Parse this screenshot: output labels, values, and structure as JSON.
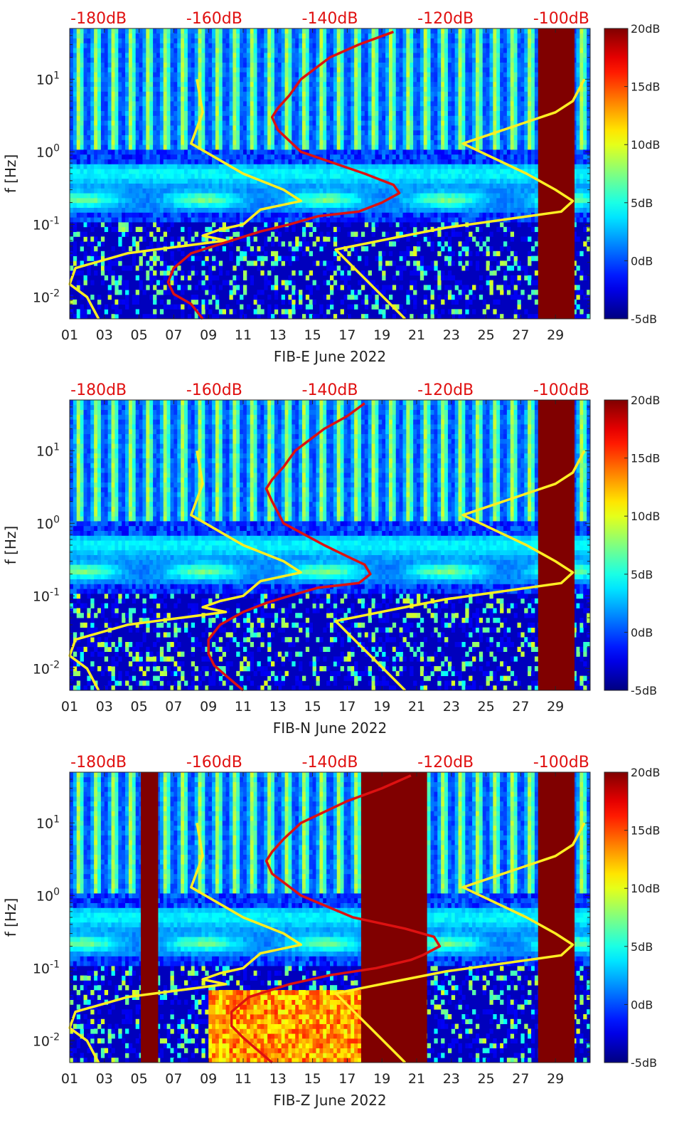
{
  "colors": {
    "noise_model_curve": "#ffee22",
    "station_curve": "#dd1111",
    "top_axis_text": "#e01010",
    "saturated_block": "#800000",
    "axis_text": "#222222"
  },
  "colorbar": {
    "colormap": "jet",
    "range_db": [
      -5,
      20
    ],
    "tick_labels": [
      "20dB",
      "15dB",
      "10dB",
      "5dB",
      "0dB",
      "-5dB"
    ]
  },
  "chart_data": [
    {
      "type": "heatmap",
      "title": "",
      "xlabel": "FIB-E June 2022",
      "ylabel": "f [Hz]",
      "x_tick_labels": [
        "01",
        "03",
        "05",
        "07",
        "09",
        "11",
        "13",
        "15",
        "17",
        "19",
        "21",
        "23",
        "25",
        "27",
        "29"
      ],
      "x_range_days": [
        1,
        31
      ],
      "y_scale": "log",
      "y_range_hz": [
        0.005,
        50
      ],
      "y_tick_labels": [
        "10^-2",
        "10^-1",
        "10^0",
        "10^1"
      ],
      "top_axis_labels": [
        "-180dB",
        "-160dB",
        "-140dB",
        "-120dB",
        "-100dB"
      ],
      "top_axis_range_db": [
        -185,
        -95
      ],
      "colorbar_range_db": [
        -5,
        20
      ],
      "saturated_blocks_days": [
        [
          28,
          30.1
        ]
      ],
      "series": [
        {
          "name": "noise-model-low",
          "color": "yellow",
          "db_by_freq": [
            [
              0.005,
              -180
            ],
            [
              0.01,
              -182
            ],
            [
              0.015,
              -185
            ],
            [
              0.025,
              -184
            ],
            [
              0.04,
              -175
            ],
            [
              0.06,
              -158
            ],
            [
              0.07,
              -162
            ],
            [
              0.085,
              -159
            ],
            [
              0.1,
              -155
            ],
            [
              0.16,
              -152
            ],
            [
              0.21,
              -145
            ],
            [
              0.3,
              -148
            ],
            [
              0.5,
              -155
            ],
            [
              1.3,
              -164
            ],
            [
              3.5,
              -162
            ],
            [
              10,
              -163
            ]
          ]
        },
        {
          "name": "noise-model-high",
          "color": "yellow",
          "db_by_freq": [
            [
              0.005,
              -127
            ],
            [
              0.015,
              -133
            ],
            [
              0.045,
              -139
            ],
            [
              0.065,
              -129
            ],
            [
              0.09,
              -120
            ],
            [
              0.15,
              -100
            ],
            [
              0.21,
              -98
            ],
            [
              0.3,
              -101
            ],
            [
              0.5,
              -106
            ],
            [
              1.3,
              -117
            ],
            [
              3.5,
              -101
            ],
            [
              5,
              -98
            ],
            [
              10,
              -96
            ]
          ]
        },
        {
          "name": "station-psd",
          "color": "red",
          "db_by_freq": [
            [
              0.005,
              -162
            ],
            [
              0.008,
              -164
            ],
            [
              0.011,
              -167
            ],
            [
              0.016,
              -168
            ],
            [
              0.025,
              -167
            ],
            [
              0.04,
              -164
            ],
            [
              0.06,
              -157
            ],
            [
              0.08,
              -152
            ],
            [
              0.1,
              -147
            ],
            [
              0.13,
              -142
            ],
            [
              0.15,
              -135
            ],
            [
              0.2,
              -131
            ],
            [
              0.27,
              -128
            ],
            [
              0.35,
              -129
            ],
            [
              0.5,
              -134
            ],
            [
              1,
              -145
            ],
            [
              2,
              -149
            ],
            [
              3,
              -150
            ],
            [
              4,
              -149
            ],
            [
              6,
              -147
            ],
            [
              10,
              -145
            ],
            [
              20,
              -140
            ],
            [
              30,
              -135
            ],
            [
              45,
              -129
            ]
          ]
        }
      ]
    },
    {
      "type": "heatmap",
      "title": "",
      "xlabel": "FIB-N June 2022",
      "ylabel": "f [Hz]",
      "x_tick_labels": [
        "01",
        "03",
        "05",
        "07",
        "09",
        "11",
        "13",
        "15",
        "17",
        "19",
        "21",
        "23",
        "25",
        "27",
        "29"
      ],
      "x_range_days": [
        1,
        31
      ],
      "y_scale": "log",
      "y_range_hz": [
        0.005,
        50
      ],
      "y_tick_labels": [
        "10^-2",
        "10^-1",
        "10^0",
        "10^1"
      ],
      "top_axis_labels": [
        "-180dB",
        "-160dB",
        "-140dB",
        "-120dB",
        "-100dB"
      ],
      "top_axis_range_db": [
        -185,
        -95
      ],
      "colorbar_range_db": [
        -5,
        20
      ],
      "saturated_blocks_days": [
        [
          28,
          30.1
        ]
      ],
      "series": [
        {
          "name": "noise-model-low",
          "color": "yellow",
          "db_by_freq": [
            [
              0.005,
              -180
            ],
            [
              0.01,
              -182
            ],
            [
              0.015,
              -185
            ],
            [
              0.025,
              -184
            ],
            [
              0.04,
              -175
            ],
            [
              0.06,
              -158
            ],
            [
              0.07,
              -162
            ],
            [
              0.085,
              -159
            ],
            [
              0.1,
              -155
            ],
            [
              0.16,
              -152
            ],
            [
              0.21,
              -145
            ],
            [
              0.3,
              -148
            ],
            [
              0.5,
              -155
            ],
            [
              1.3,
              -164
            ],
            [
              3.5,
              -162
            ],
            [
              10,
              -163
            ]
          ]
        },
        {
          "name": "noise-model-high",
          "color": "yellow",
          "db_by_freq": [
            [
              0.005,
              -127
            ],
            [
              0.015,
              -133
            ],
            [
              0.045,
              -139
            ],
            [
              0.065,
              -129
            ],
            [
              0.09,
              -120
            ],
            [
              0.15,
              -100
            ],
            [
              0.21,
              -98
            ],
            [
              0.3,
              -101
            ],
            [
              0.5,
              -106
            ],
            [
              1.3,
              -117
            ],
            [
              3.5,
              -101
            ],
            [
              5,
              -98
            ],
            [
              10,
              -96
            ]
          ]
        },
        {
          "name": "station-psd",
          "color": "red",
          "db_by_freq": [
            [
              0.005,
              -155
            ],
            [
              0.008,
              -158
            ],
            [
              0.011,
              -160
            ],
            [
              0.016,
              -161
            ],
            [
              0.025,
              -161
            ],
            [
              0.04,
              -159
            ],
            [
              0.06,
              -155
            ],
            [
              0.08,
              -151
            ],
            [
              0.1,
              -147
            ],
            [
              0.13,
              -142
            ],
            [
              0.15,
              -135
            ],
            [
              0.2,
              -133
            ],
            [
              0.27,
              -134
            ],
            [
              0.35,
              -137
            ],
            [
              0.5,
              -141
            ],
            [
              1,
              -148
            ],
            [
              2,
              -150
            ],
            [
              3,
              -151
            ],
            [
              4,
              -150
            ],
            [
              6,
              -148
            ],
            [
              10,
              -146
            ],
            [
              20,
              -141
            ],
            [
              30,
              -137
            ],
            [
              45,
              -134
            ]
          ]
        }
      ]
    },
    {
      "type": "heatmap",
      "title": "",
      "xlabel": "FIB-Z June 2022",
      "ylabel": "f [Hz]",
      "x_tick_labels": [
        "01",
        "03",
        "05",
        "07",
        "09",
        "11",
        "13",
        "15",
        "17",
        "19",
        "21",
        "23",
        "25",
        "27",
        "29"
      ],
      "x_range_days": [
        1,
        31
      ],
      "y_scale": "log",
      "y_range_hz": [
        0.005,
        50
      ],
      "y_tick_labels": [
        "10^-2",
        "10^-1",
        "10^0",
        "10^1"
      ],
      "top_axis_labels": [
        "-180dB",
        "-160dB",
        "-140dB",
        "-120dB",
        "-100dB"
      ],
      "top_axis_range_db": [
        -185,
        -95
      ],
      "colorbar_range_db": [
        -5,
        20
      ],
      "saturated_blocks_days": [
        [
          5.1,
          6.1
        ],
        [
          17.8,
          21.6
        ],
        [
          28,
          30.1
        ]
      ],
      "series": [
        {
          "name": "noise-model-low",
          "color": "yellow",
          "db_by_freq": [
            [
              0.005,
              -180
            ],
            [
              0.01,
              -182
            ],
            [
              0.015,
              -185
            ],
            [
              0.025,
              -184
            ],
            [
              0.04,
              -175
            ],
            [
              0.06,
              -158
            ],
            [
              0.07,
              -162
            ],
            [
              0.085,
              -159
            ],
            [
              0.1,
              -155
            ],
            [
              0.16,
              -152
            ],
            [
              0.21,
              -145
            ],
            [
              0.3,
              -148
            ],
            [
              0.5,
              -155
            ],
            [
              1.3,
              -164
            ],
            [
              3.5,
              -162
            ],
            [
              10,
              -163
            ]
          ]
        },
        {
          "name": "noise-model-high",
          "color": "yellow",
          "db_by_freq": [
            [
              0.005,
              -127
            ],
            [
              0.015,
              -133
            ],
            [
              0.045,
              -139
            ],
            [
              0.065,
              -129
            ],
            [
              0.09,
              -120
            ],
            [
              0.15,
              -100
            ],
            [
              0.21,
              -98
            ],
            [
              0.3,
              -101
            ],
            [
              0.5,
              -106
            ],
            [
              1.3,
              -117
            ],
            [
              3.5,
              -101
            ],
            [
              5,
              -98
            ],
            [
              10,
              -96
            ]
          ]
        },
        {
          "name": "station-psd",
          "color": "red",
          "db_by_freq": [
            [
              0.005,
              -150
            ],
            [
              0.008,
              -153
            ],
            [
              0.011,
              -155
            ],
            [
              0.016,
              -157
            ],
            [
              0.025,
              -157
            ],
            [
              0.04,
              -154
            ],
            [
              0.06,
              -147
            ],
            [
              0.08,
              -140
            ],
            [
              0.1,
              -132
            ],
            [
              0.13,
              -126
            ],
            [
              0.15,
              -124
            ],
            [
              0.2,
              -121
            ],
            [
              0.27,
              -122
            ],
            [
              0.35,
              -127
            ],
            [
              0.5,
              -136
            ],
            [
              1,
              -145
            ],
            [
              2,
              -150
            ],
            [
              3,
              -151
            ],
            [
              4,
              -150
            ],
            [
              6,
              -148
            ],
            [
              10,
              -145
            ],
            [
              20,
              -137
            ],
            [
              30,
              -131
            ],
            [
              45,
              -126
            ]
          ]
        }
      ]
    }
  ]
}
